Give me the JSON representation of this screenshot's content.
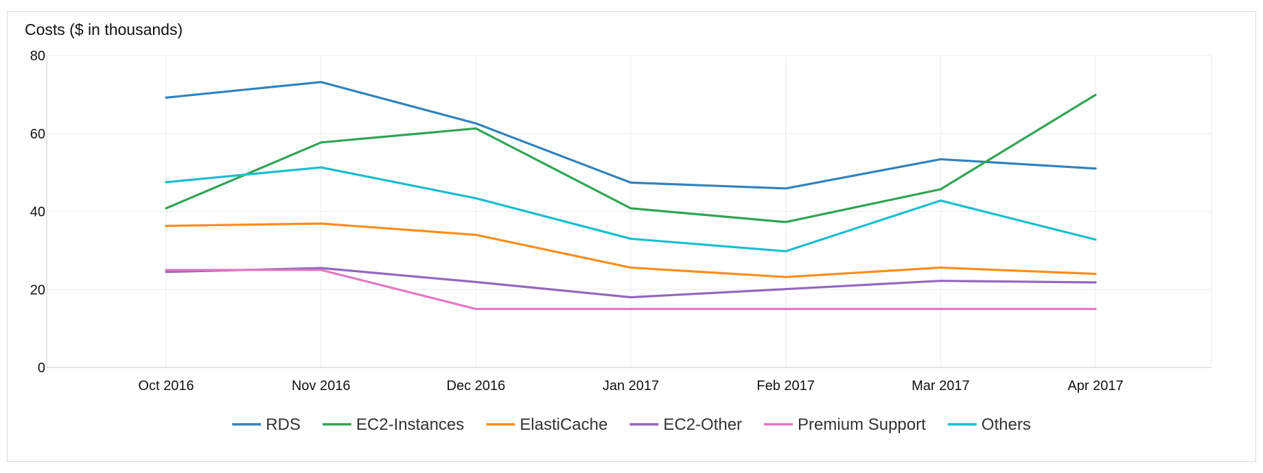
{
  "chart_data": {
    "type": "line",
    "title": "Costs ($ in thousands)",
    "xlabel": "",
    "ylabel": "",
    "categories": [
      "Oct 2016",
      "Nov 2016",
      "Dec 2016",
      "Jan 2017",
      "Feb 2017",
      "Mar 2017",
      "Apr 2017"
    ],
    "ylim": [
      0,
      80
    ],
    "yticks": [
      0,
      20,
      40,
      60,
      80
    ],
    "grid": true,
    "legend_position": "bottom",
    "series": [
      {
        "name": "RDS",
        "color": "#3182bd",
        "values": [
          69.2,
          73.2,
          62.6,
          47.4,
          45.9,
          53.4,
          51.0
        ]
      },
      {
        "name": "EC2-Instances",
        "color": "#31a354",
        "values": [
          40.8,
          57.7,
          61.3,
          40.8,
          37.3,
          45.7,
          69.9
        ]
      },
      {
        "name": "ElastiCache",
        "color": "#fd8d1c",
        "values": [
          36.3,
          36.9,
          34.0,
          25.6,
          23.2,
          25.6,
          24.0
        ]
      },
      {
        "name": "EC2-Other",
        "color": "#9467bd",
        "values": [
          24.5,
          25.5,
          21.9,
          18.0,
          20.1,
          22.2,
          21.8
        ]
      },
      {
        "name": "Premium Support",
        "color": "#e377c2",
        "values": [
          25.0,
          25.0,
          15.0,
          15.0,
          15.0,
          15.0,
          15.0
        ]
      },
      {
        "name": "Others",
        "color": "#17becf",
        "values": [
          47.5,
          51.3,
          43.4,
          33.0,
          29.8,
          42.8,
          32.8
        ]
      }
    ]
  }
}
